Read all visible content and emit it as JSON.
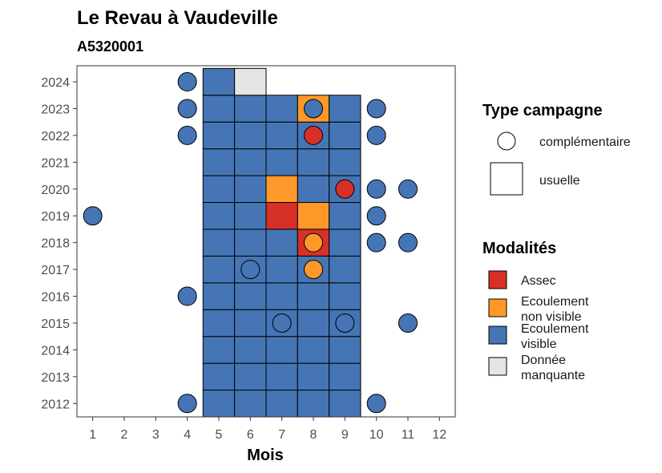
{
  "chart_data": {
    "type": "heatmap",
    "title": "Le Revau à Vaudeville",
    "subtitle": "A5320001",
    "xlabel": "Mois",
    "ylabel": "",
    "x_ticks": [
      1,
      2,
      3,
      4,
      5,
      6,
      7,
      8,
      9,
      10,
      11,
      12
    ],
    "y_ticks": [
      2012,
      2013,
      2014,
      2015,
      2016,
      2017,
      2018,
      2019,
      2020,
      2021,
      2022,
      2023,
      2024
    ],
    "xlim": [
      0.5,
      12.5
    ],
    "ylim": [
      2011.5,
      2024.6
    ],
    "grid": false,
    "modalites": [
      {
        "key": "assec",
        "label": [
          "Assec"
        ],
        "color": "#D73027"
      },
      {
        "key": "nonvisible",
        "label": [
          "Ecoulement",
          "non visible"
        ],
        "color": "#FE9929"
      },
      {
        "key": "visible",
        "label": [
          "Ecoulement",
          "visible"
        ],
        "color": "#4575B4"
      },
      {
        "key": "manquante",
        "label": [
          "Donnée",
          "manquante"
        ],
        "color": "#E5E5E5"
      }
    ],
    "types": [
      {
        "key": "complementaire",
        "label": "complémentaire"
      },
      {
        "key": "usuelle",
        "label": "usuelle"
      }
    ],
    "legend_titles": {
      "type": "Type campagne",
      "modalites": "Modalités"
    },
    "usuelle": [
      {
        "year": 2012,
        "month": 5,
        "value": "visible"
      },
      {
        "year": 2012,
        "month": 6,
        "value": "visible"
      },
      {
        "year": 2012,
        "month": 7,
        "value": "visible"
      },
      {
        "year": 2012,
        "month": 8,
        "value": "visible"
      },
      {
        "year": 2012,
        "month": 9,
        "value": "visible"
      },
      {
        "year": 2013,
        "month": 5,
        "value": "visible"
      },
      {
        "year": 2013,
        "month": 6,
        "value": "visible"
      },
      {
        "year": 2013,
        "month": 7,
        "value": "visible"
      },
      {
        "year": 2013,
        "month": 8,
        "value": "visible"
      },
      {
        "year": 2013,
        "month": 9,
        "value": "visible"
      },
      {
        "year": 2014,
        "month": 5,
        "value": "visible"
      },
      {
        "year": 2014,
        "month": 6,
        "value": "visible"
      },
      {
        "year": 2014,
        "month": 7,
        "value": "visible"
      },
      {
        "year": 2014,
        "month": 8,
        "value": "visible"
      },
      {
        "year": 2014,
        "month": 9,
        "value": "visible"
      },
      {
        "year": 2015,
        "month": 5,
        "value": "visible"
      },
      {
        "year": 2015,
        "month": 6,
        "value": "visible"
      },
      {
        "year": 2015,
        "month": 7,
        "value": "visible"
      },
      {
        "year": 2015,
        "month": 8,
        "value": "visible"
      },
      {
        "year": 2015,
        "month": 9,
        "value": "visible"
      },
      {
        "year": 2016,
        "month": 5,
        "value": "visible"
      },
      {
        "year": 2016,
        "month": 6,
        "value": "visible"
      },
      {
        "year": 2016,
        "month": 7,
        "value": "visible"
      },
      {
        "year": 2016,
        "month": 8,
        "value": "visible"
      },
      {
        "year": 2016,
        "month": 9,
        "value": "visible"
      },
      {
        "year": 2017,
        "month": 5,
        "value": "visible"
      },
      {
        "year": 2017,
        "month": 6,
        "value": "visible"
      },
      {
        "year": 2017,
        "month": 7,
        "value": "visible"
      },
      {
        "year": 2017,
        "month": 8,
        "value": "visible"
      },
      {
        "year": 2017,
        "month": 9,
        "value": "visible"
      },
      {
        "year": 2018,
        "month": 5,
        "value": "visible"
      },
      {
        "year": 2018,
        "month": 6,
        "value": "visible"
      },
      {
        "year": 2018,
        "month": 7,
        "value": "visible"
      },
      {
        "year": 2018,
        "month": 8,
        "value": "assec"
      },
      {
        "year": 2018,
        "month": 9,
        "value": "visible"
      },
      {
        "year": 2019,
        "month": 5,
        "value": "visible"
      },
      {
        "year": 2019,
        "month": 6,
        "value": "visible"
      },
      {
        "year": 2019,
        "month": 7,
        "value": "assec"
      },
      {
        "year": 2019,
        "month": 8,
        "value": "nonvisible"
      },
      {
        "year": 2019,
        "month": 9,
        "value": "visible"
      },
      {
        "year": 2020,
        "month": 5,
        "value": "visible"
      },
      {
        "year": 2020,
        "month": 6,
        "value": "visible"
      },
      {
        "year": 2020,
        "month": 7,
        "value": "nonvisible"
      },
      {
        "year": 2020,
        "month": 8,
        "value": "visible"
      },
      {
        "year": 2020,
        "month": 9,
        "value": "visible"
      },
      {
        "year": 2021,
        "month": 5,
        "value": "visible"
      },
      {
        "year": 2021,
        "month": 6,
        "value": "visible"
      },
      {
        "year": 2021,
        "month": 7,
        "value": "visible"
      },
      {
        "year": 2021,
        "month": 8,
        "value": "visible"
      },
      {
        "year": 2021,
        "month": 9,
        "value": "visible"
      },
      {
        "year": 2022,
        "month": 5,
        "value": "visible"
      },
      {
        "year": 2022,
        "month": 6,
        "value": "visible"
      },
      {
        "year": 2022,
        "month": 7,
        "value": "visible"
      },
      {
        "year": 2022,
        "month": 8,
        "value": "visible"
      },
      {
        "year": 2022,
        "month": 9,
        "value": "visible"
      },
      {
        "year": 2023,
        "month": 5,
        "value": "visible"
      },
      {
        "year": 2023,
        "month": 6,
        "value": "visible"
      },
      {
        "year": 2023,
        "month": 7,
        "value": "visible"
      },
      {
        "year": 2023,
        "month": 8,
        "value": "nonvisible"
      },
      {
        "year": 2023,
        "month": 9,
        "value": "visible"
      },
      {
        "year": 2024,
        "month": 5,
        "value": "visible"
      },
      {
        "year": 2024,
        "month": 6,
        "value": "manquante"
      }
    ],
    "complementaire": [
      {
        "year": 2012,
        "month": 4,
        "value": "visible"
      },
      {
        "year": 2012,
        "month": 10,
        "value": "visible"
      },
      {
        "year": 2015,
        "month": 7,
        "value": "visible"
      },
      {
        "year": 2015,
        "month": 9,
        "value": "visible"
      },
      {
        "year": 2015,
        "month": 11,
        "value": "visible"
      },
      {
        "year": 2016,
        "month": 4,
        "value": "visible"
      },
      {
        "year": 2017,
        "month": 6,
        "value": "visible"
      },
      {
        "year": 2017,
        "month": 8,
        "value": "nonvisible"
      },
      {
        "year": 2018,
        "month": 8,
        "value": "nonvisible"
      },
      {
        "year": 2018,
        "month": 10,
        "value": "visible"
      },
      {
        "year": 2018,
        "month": 11,
        "value": "visible"
      },
      {
        "year": 2019,
        "month": 1,
        "value": "visible"
      },
      {
        "year": 2019,
        "month": 10,
        "value": "visible"
      },
      {
        "year": 2020,
        "month": 9,
        "value": "assec"
      },
      {
        "year": 2020,
        "month": 10,
        "value": "visible"
      },
      {
        "year": 2020,
        "month": 11,
        "value": "visible"
      },
      {
        "year": 2022,
        "month": 4,
        "value": "visible"
      },
      {
        "year": 2022,
        "month": 8,
        "value": "assec"
      },
      {
        "year": 2022,
        "month": 10,
        "value": "visible"
      },
      {
        "year": 2023,
        "month": 4,
        "value": "visible"
      },
      {
        "year": 2023,
        "month": 8,
        "value": "visible"
      },
      {
        "year": 2023,
        "month": 10,
        "value": "visible"
      },
      {
        "year": 2024,
        "month": 4,
        "value": "visible"
      }
    ]
  }
}
